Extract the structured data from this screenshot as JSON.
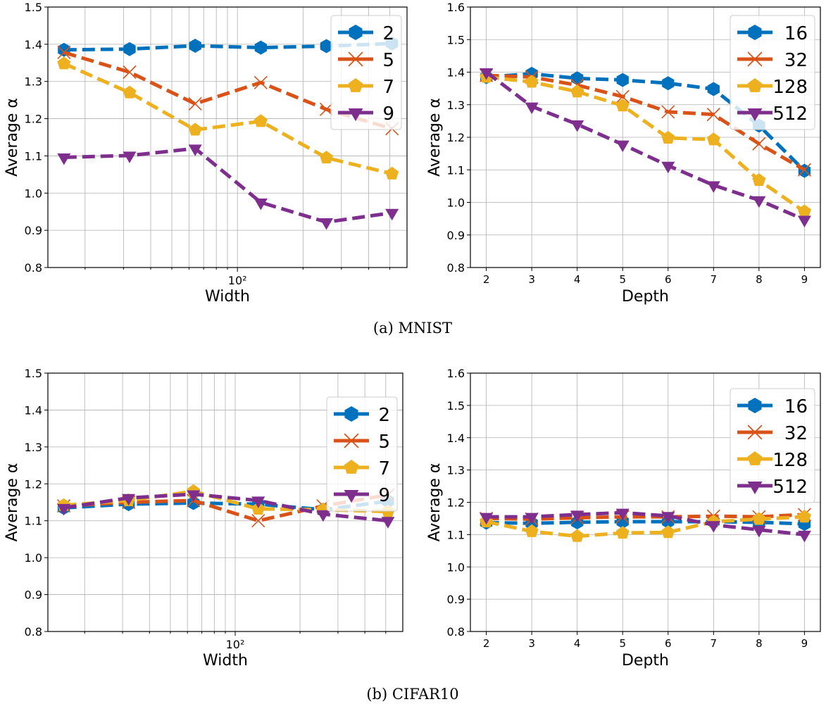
{
  "colors": {
    "c0": "#0072BD",
    "c1": "#D95319",
    "c2": "#EDB120",
    "c3": "#7E2F8E"
  },
  "markers": [
    "hexagon",
    "x",
    "pentagon",
    "triangle-down"
  ],
  "captions": [
    "(a) MNIST",
    "(b) CIFAR10"
  ],
  "chart_data": [
    {
      "type": "line",
      "xlabel": "Width",
      "ylabel": "Average α",
      "xscale": "log",
      "xlim": [
        13.5,
        600
      ],
      "ylim": [
        0.8,
        1.5
      ],
      "yticks": [
        "0.8",
        "0.9",
        "1.0",
        "1.1",
        "1.2",
        "1.3",
        "1.4",
        "1.5"
      ],
      "xtick_label": "10²",
      "grid": true,
      "legend": "top-right",
      "x": [
        16,
        32,
        64,
        128,
        256,
        512
      ],
      "series": [
        {
          "name": "2",
          "values": [
            1.385,
            1.387,
            1.396,
            1.391,
            1.395,
            1.402
          ]
        },
        {
          "name": "5",
          "values": [
            1.378,
            1.325,
            1.24,
            1.297,
            1.225,
            1.173
          ]
        },
        {
          "name": "7",
          "values": [
            1.348,
            1.27,
            1.17,
            1.193,
            1.095,
            1.052
          ]
        },
        {
          "name": "9",
          "values": [
            1.096,
            1.101,
            1.12,
            0.975,
            0.922,
            0.947
          ]
        }
      ]
    },
    {
      "type": "line",
      "xlabel": "Depth",
      "ylabel": "Average α",
      "xscale": "linear",
      "xlim": [
        1.65,
        9.35
      ],
      "ylim": [
        0.8,
        1.6
      ],
      "yticks": [
        "0.8",
        "0.9",
        "1.0",
        "1.1",
        "1.2",
        "1.3",
        "1.4",
        "1.5",
        "1.6"
      ],
      "xticks": [
        "2",
        "3",
        "4",
        "5",
        "6",
        "7",
        "8",
        "9"
      ],
      "grid": true,
      "legend": "top-right",
      "x": [
        2,
        3,
        4,
        5,
        6,
        7,
        8,
        9
      ],
      "series": [
        {
          "name": "16",
          "values": [
            1.385,
            1.395,
            1.381,
            1.376,
            1.366,
            1.348,
            1.236,
            1.097
          ]
        },
        {
          "name": "32",
          "values": [
            1.39,
            1.385,
            1.36,
            1.325,
            1.278,
            1.27,
            1.18,
            1.1
          ]
        },
        {
          "name": "128",
          "values": [
            1.385,
            1.37,
            1.34,
            1.297,
            1.198,
            1.193,
            1.068,
            0.972
          ]
        },
        {
          "name": "512",
          "values": [
            1.4,
            1.295,
            1.24,
            1.178,
            1.113,
            1.053,
            1.007,
            0.947
          ]
        }
      ]
    },
    {
      "type": "line",
      "xlabel": "Width",
      "ylabel": "Average α",
      "xscale": "log",
      "xlim": [
        13.5,
        600
      ],
      "ylim": [
        0.8,
        1.5
      ],
      "yticks": [
        "0.8",
        "0.9",
        "1.0",
        "1.1",
        "1.2",
        "1.3",
        "1.4",
        "1.5"
      ],
      "xtick_label": "10²",
      "grid": true,
      "legend": "top-right",
      "x": [
        16,
        32,
        64,
        128,
        256,
        512
      ],
      "series": [
        {
          "name": "2",
          "values": [
            1.135,
            1.145,
            1.148,
            1.145,
            1.13,
            1.153
          ]
        },
        {
          "name": "5",
          "values": [
            1.14,
            1.15,
            1.155,
            1.1,
            1.14,
            1.17
          ]
        },
        {
          "name": "7",
          "values": [
            1.142,
            1.155,
            1.18,
            1.132,
            1.13,
            1.125
          ]
        },
        {
          "name": "9",
          "values": [
            1.135,
            1.162,
            1.172,
            1.155,
            1.118,
            1.1
          ]
        }
      ]
    },
    {
      "type": "line",
      "xlabel": "Depth",
      "ylabel": "Average α",
      "xscale": "linear",
      "xlim": [
        1.65,
        9.35
      ],
      "ylim": [
        0.8,
        1.6
      ],
      "yticks": [
        "0.8",
        "0.9",
        "1.0",
        "1.1",
        "1.2",
        "1.3",
        "1.4",
        "1.5",
        "1.6"
      ],
      "xticks": [
        "2",
        "3",
        "4",
        "5",
        "6",
        "7",
        "8",
        "9"
      ],
      "grid": true,
      "legend": "top-right",
      "x": [
        2,
        3,
        4,
        5,
        6,
        7,
        8,
        9
      ],
      "series": [
        {
          "name": "16",
          "values": [
            1.137,
            1.135,
            1.138,
            1.14,
            1.14,
            1.14,
            1.138,
            1.133
          ]
        },
        {
          "name": "32",
          "values": [
            1.15,
            1.148,
            1.152,
            1.155,
            1.155,
            1.157,
            1.155,
            1.162
          ]
        },
        {
          "name": "128",
          "values": [
            1.14,
            1.11,
            1.095,
            1.105,
            1.107,
            1.14,
            1.148,
            1.155
          ]
        },
        {
          "name": "512",
          "values": [
            1.155,
            1.155,
            1.162,
            1.168,
            1.158,
            1.13,
            1.115,
            1.1
          ]
        }
      ]
    }
  ]
}
